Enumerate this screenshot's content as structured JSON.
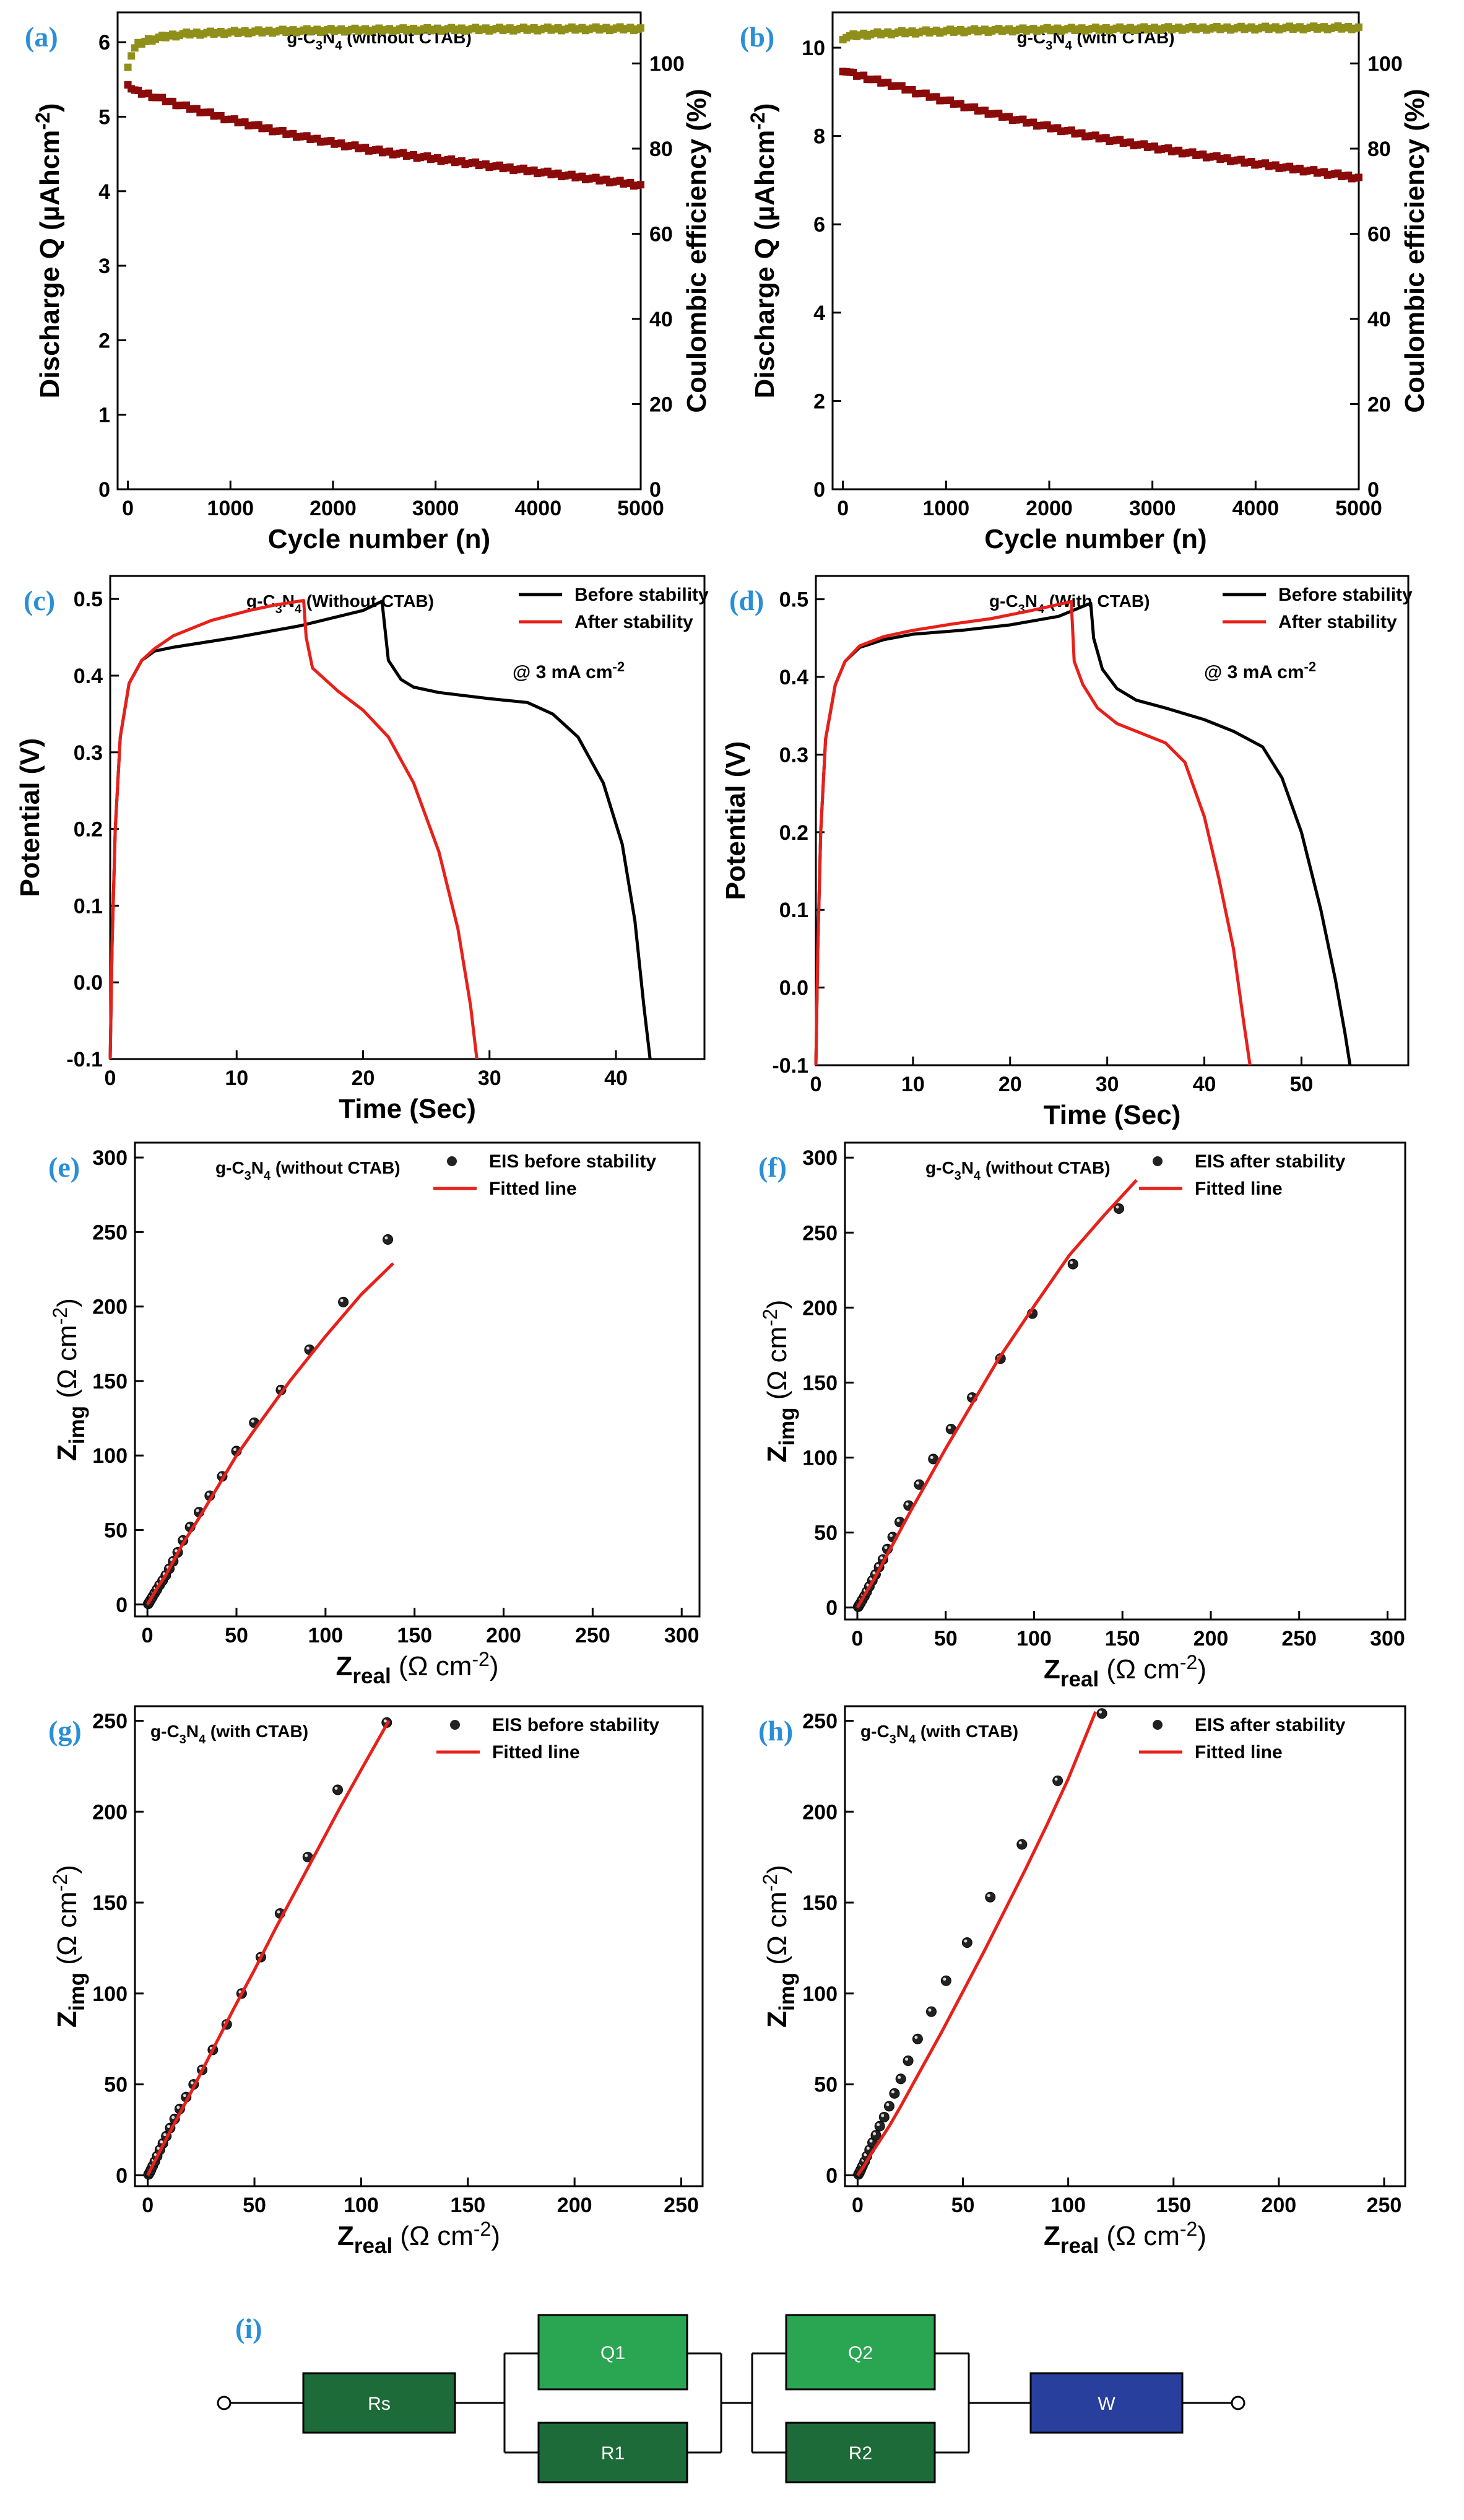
{
  "panels": [
    {
      "id": "a",
      "label": "(a)",
      "type": "scatter",
      "title": "g-C3N4 (without CTAB)",
      "xlabel": "Cycle number (n)",
      "ylabel": "Discharge Q (µAhcm-2)",
      "y2label": "Coulombic efficiency (%)",
      "xlim": [
        -100,
        5000
      ],
      "ylim": [
        0,
        6.4
      ],
      "y2lim": [
        0,
        112
      ],
      "xticks": [
        0,
        1000,
        2000,
        3000,
        4000,
        5000
      ],
      "yticks": [
        0,
        1,
        2,
        3,
        4,
        5,
        6
      ],
      "y2ticks": [
        0,
        20,
        40,
        60,
        80,
        100
      ],
      "series": [
        {
          "name": "Discharge Q",
          "axis": "left",
          "color": "#8b0a0a",
          "x": [
            0,
            20,
            50,
            100,
            200,
            300,
            500,
            700,
            1000,
            1300,
            1600,
            2000,
            2400,
            2800,
            3200,
            3600,
            4000,
            4400,
            4800,
            5000
          ],
          "y": [
            5.45,
            5.4,
            5.36,
            5.33,
            5.3,
            5.25,
            5.16,
            5.08,
            4.96,
            4.86,
            4.76,
            4.65,
            4.55,
            4.47,
            4.4,
            4.33,
            4.26,
            4.19,
            4.12,
            4.08
          ]
        },
        {
          "name": "Coulombic efficiency",
          "axis": "right",
          "color": "#8f8f1a",
          "x": [
            0,
            20,
            50,
            100,
            200,
            400,
            600,
            1000,
            1500,
            2000,
            3000,
            4000,
            5000
          ],
          "y": [
            99.5,
            101,
            103,
            104.5,
            105.5,
            106.5,
            107,
            107.3,
            107.6,
            107.8,
            108,
            108.1,
            108.2
          ]
        }
      ]
    },
    {
      "id": "b",
      "label": "(b)",
      "type": "scatter",
      "title": "g-C3N4 (with CTAB)",
      "xlabel": "Cycle number (n)",
      "ylabel": "Discharge Q (µAhcm-2)",
      "y2label": "Coulombic efficiency (%)",
      "xlim": [
        -100,
        5000
      ],
      "ylim": [
        0,
        10.8
      ],
      "y2lim": [
        0,
        112
      ],
      "xticks": [
        0,
        1000,
        2000,
        3000,
        4000,
        5000
      ],
      "yticks": [
        0,
        2,
        4,
        6,
        8,
        10
      ],
      "y2ticks": [
        0,
        20,
        40,
        60,
        80,
        100
      ],
      "series": [
        {
          "name": "Discharge Q",
          "axis": "left",
          "color": "#8b0a0a",
          "x": [
            0,
            50,
            100,
            200,
            300,
            500,
            700,
            1000,
            1300,
            1600,
            2000,
            2400,
            2800,
            3200,
            3600,
            4000,
            4400,
            4800,
            5000
          ],
          "y": [
            9.5,
            9.45,
            9.4,
            9.35,
            9.27,
            9.15,
            9.0,
            8.8,
            8.6,
            8.42,
            8.2,
            8.0,
            7.83,
            7.67,
            7.52,
            7.38,
            7.25,
            7.12,
            7.05
          ]
        },
        {
          "name": "Coulombic efficiency",
          "axis": "right",
          "color": "#8f8f1a",
          "x": [
            0,
            50,
            100,
            200,
            500,
            1000,
            2000,
            3000,
            4000,
            5000
          ],
          "y": [
            106,
            106.3,
            106.5,
            106.8,
            107.2,
            107.6,
            108,
            108.2,
            108.3,
            108.4
          ]
        }
      ]
    },
    {
      "id": "c",
      "label": "(c)",
      "type": "line",
      "title": "g-C3N4 (Without CTAB)",
      "note": "@ 3 mA cm-2",
      "xlabel": "Time (Sec)",
      "ylabel": "Potential (V)",
      "xlim": [
        0,
        47
      ],
      "ylim": [
        -0.1,
        0.53
      ],
      "xticks": [
        0,
        10,
        20,
        30,
        40
      ],
      "yticks": [
        -0.1,
        0.0,
        0.1,
        0.2,
        0.3,
        0.4,
        0.5
      ],
      "series": [
        {
          "name": "Before stability",
          "color": "#000000",
          "x": [
            0,
            0.15,
            0.4,
            0.8,
            1.5,
            2.5,
            3.5,
            5,
            10,
            15,
            20,
            21.5,
            22,
            23,
            24,
            26,
            30,
            33,
            35,
            37,
            39,
            40.5,
            41.5,
            42.2,
            42.7
          ],
          "y": [
            -0.1,
            0.05,
            0.2,
            0.32,
            0.39,
            0.42,
            0.432,
            0.437,
            0.45,
            0.465,
            0.485,
            0.497,
            0.42,
            0.395,
            0.385,
            0.378,
            0.37,
            0.365,
            0.35,
            0.32,
            0.26,
            0.18,
            0.08,
            -0.03,
            -0.1
          ]
        },
        {
          "name": "After stability",
          "color": "#e8201a",
          "x": [
            0,
            0.15,
            0.4,
            0.8,
            1.5,
            2.5,
            3.5,
            5,
            8,
            11,
            13,
            15.3,
            15.5,
            16,
            18,
            20,
            22,
            24,
            26,
            27.5,
            28.5,
            29
          ],
          "y": [
            -0.1,
            0.05,
            0.2,
            0.32,
            0.39,
            0.42,
            0.435,
            0.452,
            0.472,
            0.485,
            0.492,
            0.498,
            0.45,
            0.41,
            0.38,
            0.355,
            0.32,
            0.26,
            0.17,
            0.07,
            -0.03,
            -0.1
          ]
        }
      ]
    },
    {
      "id": "d",
      "label": "(d)",
      "type": "line",
      "title": "g-C3N4 (With CTAB)",
      "note": "@ 3 mA cm-2",
      "xlabel": "Time (Sec)",
      "ylabel": "Potential (V)",
      "xlim": [
        0,
        61
      ],
      "ylim": [
        -0.1,
        0.53
      ],
      "xticks": [
        0,
        10,
        20,
        30,
        40,
        50
      ],
      "yticks": [
        -0.1,
        0.0,
        0.1,
        0.2,
        0.3,
        0.4,
        0.5
      ],
      "series": [
        {
          "name": "Before stability",
          "color": "#000000",
          "x": [
            0,
            0.2,
            0.5,
            1,
            2,
            3,
            4.5,
            7,
            10,
            15,
            20,
            25,
            28.3,
            28.6,
            29.5,
            31,
            33,
            36,
            40,
            43,
            46,
            48,
            50,
            52,
            53.5,
            54.5,
            55
          ],
          "y": [
            -0.1,
            0.05,
            0.2,
            0.32,
            0.39,
            0.42,
            0.438,
            0.448,
            0.455,
            0.46,
            0.467,
            0.478,
            0.495,
            0.45,
            0.41,
            0.385,
            0.37,
            0.36,
            0.345,
            0.33,
            0.31,
            0.27,
            0.2,
            0.1,
            0.01,
            -0.06,
            -0.1
          ]
        },
        {
          "name": "After stability",
          "color": "#e8201a",
          "x": [
            0,
            0.2,
            0.5,
            1,
            2,
            3,
            4.5,
            7,
            10,
            14,
            18,
            22,
            26.3,
            26.6,
            27.5,
            29,
            31,
            33,
            36,
            38,
            40,
            41.5,
            43,
            44,
            44.7
          ],
          "y": [
            -0.1,
            0.05,
            0.2,
            0.32,
            0.39,
            0.42,
            0.44,
            0.452,
            0.46,
            0.468,
            0.475,
            0.485,
            0.497,
            0.42,
            0.39,
            0.36,
            0.34,
            0.33,
            0.315,
            0.29,
            0.22,
            0.14,
            0.05,
            -0.04,
            -0.1
          ]
        }
      ]
    },
    {
      "id": "e",
      "label": "(e)",
      "type": "scatter",
      "title": "g-C3N4 (without CTAB)",
      "xlabel": "Zreal (Ω cm-2)",
      "ylabel": "Zimg (Ω cm-2)",
      "xlim": [
        -7,
        310
      ],
      "ylim": [
        -8,
        310
      ],
      "xticks": [
        0,
        50,
        100,
        150,
        200,
        250,
        300
      ],
      "yticks": [
        0,
        50,
        100,
        150,
        200,
        250,
        300
      ],
      "series": [
        {
          "name": "EIS before stability",
          "kind": "points",
          "x": [
            0.5,
            1,
            1.8,
            2.8,
            4,
            5.3,
            6.8,
            8.5,
            10.3,
            12.3,
            14.5,
            17,
            20,
            24,
            29,
            35,
            42,
            50,
            60,
            75,
            91,
            110,
            135
          ],
          "y": [
            0.5,
            1.5,
            3,
            5,
            7.5,
            10,
            13,
            16,
            19.5,
            24,
            29,
            35,
            43,
            52,
            62,
            73,
            86,
            103,
            122,
            144,
            171,
            203,
            245
          ]
        },
        {
          "name": "Fitted line",
          "kind": "line",
          "color": "#e8201a",
          "x": [
            0,
            3,
            6,
            10,
            15,
            20,
            30,
            40,
            50,
            60,
            80,
            100,
            120,
            138
          ],
          "y": [
            0,
            6,
            12,
            19,
            30,
            41,
            60,
            80,
            100,
            117,
            150,
            180,
            208,
            229
          ]
        }
      ]
    },
    {
      "id": "f",
      "label": "(f)",
      "type": "scatter",
      "title": "g-C3N4 (without CTAB)",
      "xlabel": "Zreal (Ω cm-2)",
      "ylabel": "Zimg (Ω cm-2)",
      "xlim": [
        -7,
        310
      ],
      "ylim": [
        -8,
        310
      ],
      "xticks": [
        0,
        50,
        100,
        150,
        200,
        250,
        300
      ],
      "yticks": [
        0,
        50,
        100,
        150,
        200,
        250,
        300
      ],
      "series": [
        {
          "name": "EIS after stability",
          "kind": "points",
          "x": [
            0.5,
            1,
            1.8,
            2.8,
            4,
            5.3,
            6.8,
            8.5,
            10.3,
            12.3,
            14.5,
            17,
            20,
            24,
            29,
            35,
            43,
            53,
            65,
            81,
            99,
            122,
            148
          ],
          "y": [
            0.5,
            1.5,
            3,
            5,
            7.5,
            10.5,
            14,
            18,
            22,
            27,
            32,
            39,
            47,
            57,
            68,
            82,
            99,
            119,
            140,
            166,
            196,
            229,
            266
          ]
        },
        {
          "name": "Fitted line",
          "kind": "line",
          "color": "#e8201a",
          "x": [
            0,
            3,
            6,
            10,
            15,
            20,
            30,
            40,
            50,
            60,
            80,
            100,
            120,
            140,
            158
          ],
          "y": [
            0,
            6,
            12,
            20,
            31,
            42,
            64,
            85,
            106,
            126,
            166,
            201,
            235,
            262,
            285
          ]
        }
      ]
    },
    {
      "id": "g",
      "label": "(g)",
      "type": "scatter",
      "title": "g-C3N4 (with CTAB)",
      "xlabel": "Zreal (Ω cm-2)",
      "ylabel": "Zimg (Ω cm-2)",
      "xlim": [
        -6,
        260
      ],
      "ylim": [
        -6,
        258
      ],
      "xticks": [
        0,
        50,
        100,
        150,
        200,
        250
      ],
      "yticks": [
        0,
        50,
        100,
        150,
        200,
        250
      ],
      "series": [
        {
          "name": "EIS before stability",
          "kind": "points",
          "x": [
            0.4,
            0.9,
            1.5,
            2.3,
            3.3,
            4.4,
            5.7,
            7.1,
            8.7,
            10.5,
            12.6,
            15,
            18,
            21.5,
            25.5,
            30.5,
            37,
            44,
            53,
            62,
            75,
            89,
            112
          ],
          "y": [
            0.5,
            1.5,
            3,
            5,
            7.5,
            10.5,
            14,
            17.5,
            21.5,
            26,
            31,
            36.5,
            43,
            50,
            58,
            69,
            83,
            100,
            120,
            144,
            175,
            212,
            249
          ]
        },
        {
          "name": "Fitted line",
          "kind": "line",
          "color": "#e8201a",
          "x": [
            0,
            3,
            6,
            10,
            15,
            20,
            30,
            40,
            50,
            60,
            70,
            80,
            90,
            100,
            113
          ],
          "y": [
            0,
            7,
            14,
            23,
            34,
            45,
            68,
            91,
            113,
            136,
            158,
            180,
            202,
            223,
            250
          ]
        }
      ]
    },
    {
      "id": "h",
      "label": "(h)",
      "type": "scatter",
      "title": "g-C3N4 (with CTAB)",
      "xlabel": "Zreal (Ω cm-2)",
      "ylabel": "Zimg (Ω cm-2)",
      "xlim": [
        -6,
        260
      ],
      "ylim": [
        -6,
        258
      ],
      "xticks": [
        0,
        50,
        100,
        150,
        200,
        250
      ],
      "yticks": [
        0,
        50,
        100,
        150,
        200,
        250
      ],
      "series": [
        {
          "name": "EIS after stability",
          "kind": "points",
          "x": [
            0.4,
            0.9,
            1.5,
            2.3,
            3.3,
            4.4,
            5.7,
            7.1,
            8.7,
            10.5,
            12.6,
            15,
            17.5,
            20.5,
            24,
            28.5,
            35,
            42,
            52,
            63,
            78,
            95,
            116
          ],
          "y": [
            0.5,
            1.5,
            3,
            5,
            7.5,
            10.5,
            14,
            18,
            22,
            27,
            32,
            38,
            45,
            53,
            63,
            75,
            90,
            107,
            128,
            153,
            182,
            217,
            254
          ]
        },
        {
          "name": "Fitted line",
          "kind": "line",
          "color": "#e8201a",
          "x": [
            0,
            3,
            6,
            10,
            15,
            20,
            30,
            40,
            50,
            60,
            70,
            80,
            90,
            100,
            113
          ],
          "y": [
            0,
            5,
            11,
            18,
            27,
            37,
            58,
            79,
            101,
            123,
            146,
            169,
            193,
            218,
            255
          ]
        }
      ]
    }
  ],
  "circuit": {
    "label": "(i)",
    "components": [
      {
        "id": "rs",
        "label": "Rs",
        "color": "#1e6b3a"
      },
      {
        "id": "q1",
        "label": "Q1",
        "color": "#2aa552"
      },
      {
        "id": "r1",
        "label": "R1",
        "color": "#1e6b3a"
      },
      {
        "id": "q2",
        "label": "Q2",
        "color": "#2aa552"
      },
      {
        "id": "r2",
        "label": "R2",
        "color": "#1e6b3a"
      },
      {
        "id": "w",
        "label": "W",
        "color": "#283f9e"
      }
    ]
  }
}
